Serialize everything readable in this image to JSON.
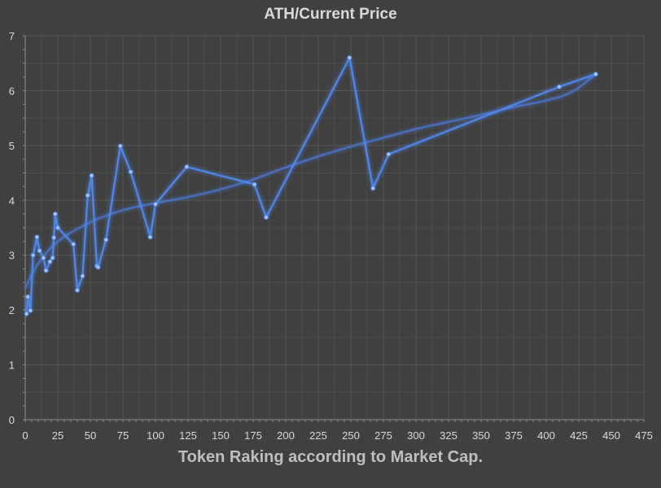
{
  "chart_data": {
    "type": "line",
    "title": "ATH/Current Price",
    "xlabel": "Token Raking according to Market Cap.",
    "ylabel": "",
    "xlim": [
      0,
      475
    ],
    "ylim": [
      0,
      7
    ],
    "x_ticks": [
      0,
      25,
      50,
      75,
      100,
      125,
      150,
      175,
      200,
      225,
      250,
      275,
      300,
      325,
      350,
      375,
      400,
      425,
      450,
      475
    ],
    "y_ticks": [
      0,
      1,
      2,
      3,
      4,
      5,
      6,
      7
    ],
    "grid": true,
    "legend": "none",
    "colors": {
      "background": "#404040",
      "grid": "#595959",
      "series": "#4f86e8",
      "trend": "#4a72c4",
      "text": "#d9d9d9"
    },
    "series": [
      {
        "points": [
          [
            1,
            1.93
          ],
          [
            2,
            2.24
          ],
          [
            4,
            1.99
          ],
          [
            6,
            3.0
          ],
          [
            9,
            3.33
          ],
          [
            11,
            3.08
          ],
          [
            14,
            2.95
          ],
          [
            16,
            2.72
          ],
          [
            19,
            2.88
          ],
          [
            21,
            2.95
          ],
          [
            22,
            3.32
          ],
          [
            23,
            3.75
          ],
          [
            25,
            3.5
          ],
          [
            37,
            3.2
          ],
          [
            40,
            2.36
          ],
          [
            44,
            2.62
          ],
          [
            48,
            4.09
          ],
          [
            51,
            4.45
          ],
          [
            55,
            2.8
          ],
          [
            56,
            2.78
          ],
          [
            62,
            3.28
          ],
          [
            73,
            4.99
          ],
          [
            81,
            4.52
          ],
          [
            96,
            3.33
          ],
          [
            100,
            3.93
          ],
          [
            124,
            4.61
          ],
          [
            176,
            4.29
          ],
          [
            185,
            3.69
          ],
          [
            249,
            6.6
          ],
          [
            267,
            4.22
          ],
          [
            279,
            4.84
          ],
          [
            410,
            6.07
          ],
          [
            438,
            6.3
          ]
        ]
      }
    ],
    "trendline": {
      "type": "polynomial",
      "points": [
        [
          0,
          2.4
        ],
        [
          10,
          2.85
        ],
        [
          25,
          3.25
        ],
        [
          50,
          3.6
        ],
        [
          75,
          3.82
        ],
        [
          100,
          3.95
        ],
        [
          125,
          4.06
        ],
        [
          150,
          4.2
        ],
        [
          175,
          4.38
        ],
        [
          200,
          4.6
        ],
        [
          225,
          4.8
        ],
        [
          250,
          4.98
        ],
        [
          275,
          5.14
        ],
        [
          300,
          5.3
        ],
        [
          325,
          5.43
        ],
        [
          350,
          5.56
        ],
        [
          375,
          5.7
        ],
        [
          400,
          5.82
        ],
        [
          420,
          5.98
        ],
        [
          438,
          6.3
        ]
      ]
    }
  }
}
